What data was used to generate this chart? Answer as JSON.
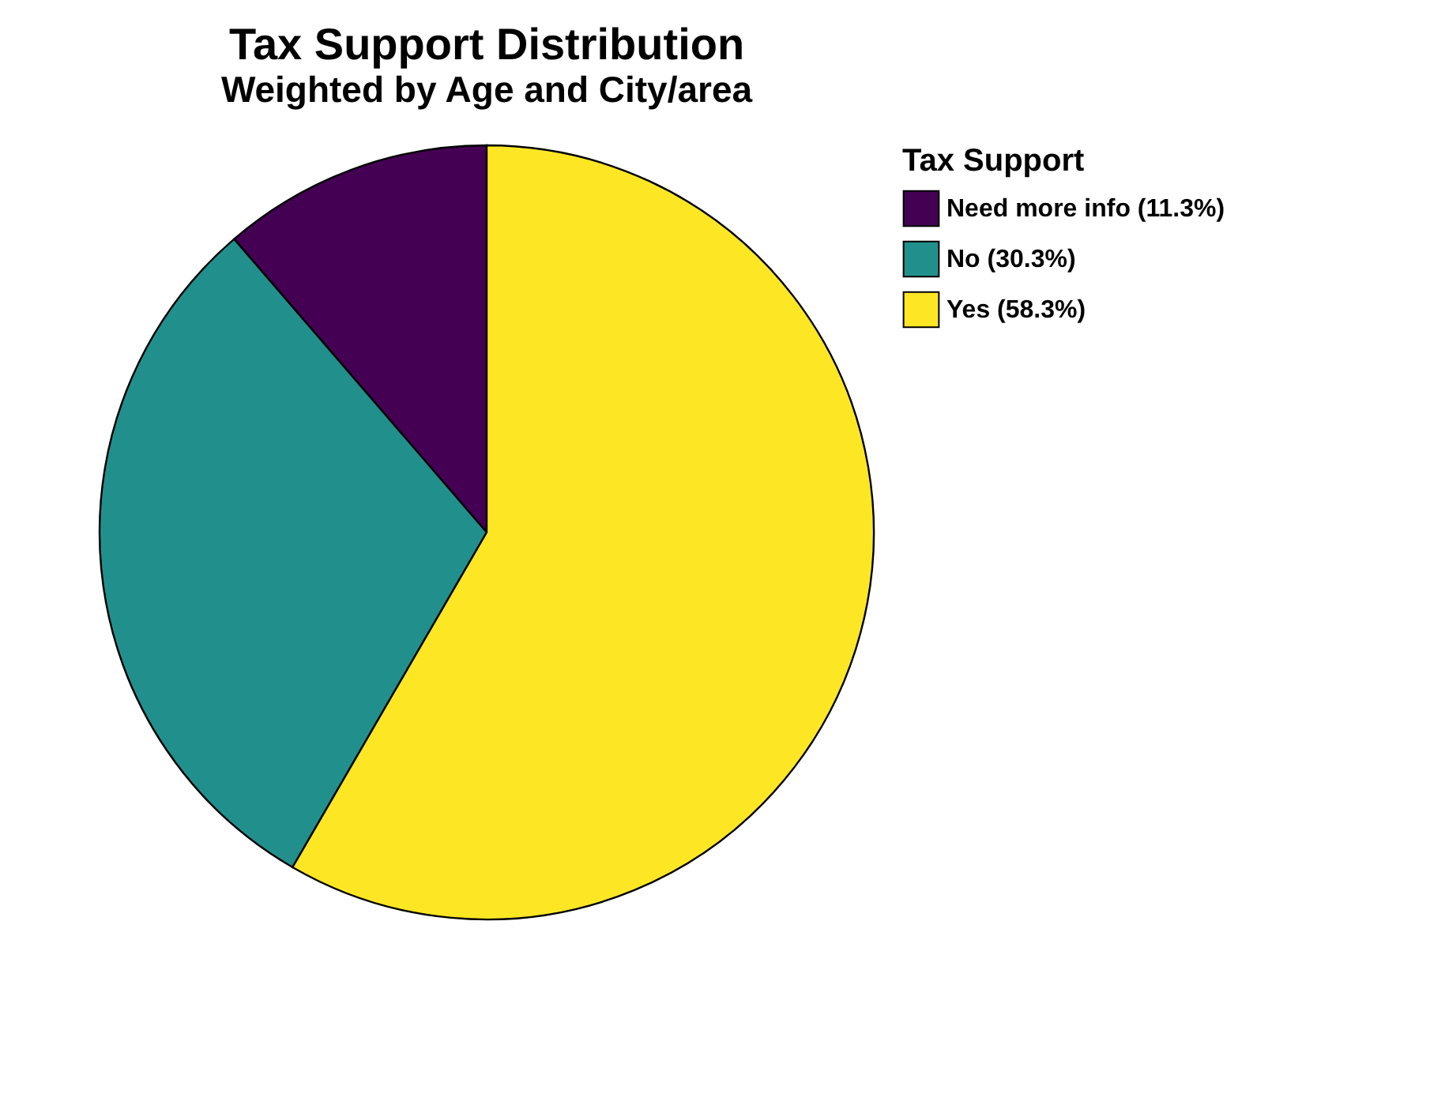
{
  "chart_data": {
    "type": "pie",
    "title": "Tax Support Distribution",
    "subtitle": "Weighted by Age and City/area",
    "legend_title": "Tax Support",
    "legend": "right",
    "categories": [
      "Need more info (11.3%)",
      "No (30.3%)",
      "Yes (58.3%)"
    ],
    "values": [
      11.3,
      30.3,
      58.3
    ],
    "colors": [
      "#440154",
      "#21908c",
      "#fde725"
    ]
  }
}
